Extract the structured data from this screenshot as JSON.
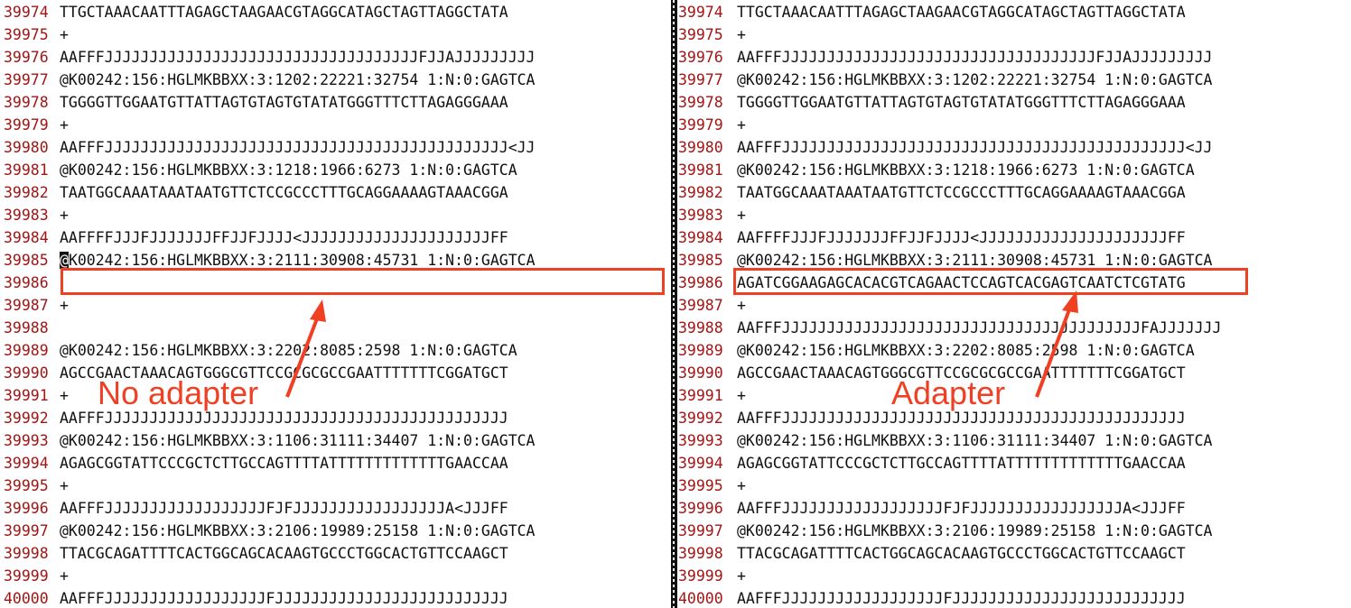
{
  "left_pane": {
    "lines": [
      {
        "n": "39974",
        "text": "TTGCTAAACAATTTAGAGCTAAGAACGTAGGCATAGCTAGTTAGGCTATA"
      },
      {
        "n": "39975",
        "text": "+"
      },
      {
        "n": "39976",
        "text": "AAFFFJJJJJJJJJJJJJJJJJJJJJJJJJJJJJJJJJJJFJJAJJJJJJJJJ"
      },
      {
        "n": "39977",
        "text": "@K00242:156:HGLMKBBXX:3:1202:22221:32754 1:N:0:GAGTCA"
      },
      {
        "n": "39978",
        "text": "TGGGGTTGGAATGTTATTAGTGTAGTGTATATGGGTTTCTTAGAGGGAAA"
      },
      {
        "n": "39979",
        "text": "+"
      },
      {
        "n": "39980",
        "text": "AAFFFJJJJJJJJJJJJJJJJJJJJJJJJJJJJJJJJJJJJJJJJJJJJJ<JJ"
      },
      {
        "n": "39981",
        "text": "@K00242:156:HGLMKBBXX:3:1218:1966:6273 1:N:0:GAGTCA"
      },
      {
        "n": "39982",
        "text": "TAATGGCAAATAAATAATGTTCTCCGCCCTTTGCAGGAAAAGTAAACGGA"
      },
      {
        "n": "39983",
        "text": "+"
      },
      {
        "n": "39984",
        "text": "AAFFFFJJJFJJJJJJJFFJJFJJJJ<JJJJJJJJJJJJJJJJJJJJJFF"
      },
      {
        "n": "39985",
        "text": "K00242:156:HGLMKBBXX:3:2111:30908:45731 1:N:0:GAGTCA",
        "cursor_char": "@"
      },
      {
        "n": "39986",
        "text": ""
      },
      {
        "n": "39987",
        "text": "+"
      },
      {
        "n": "39988",
        "text": ""
      },
      {
        "n": "39989",
        "text": "@K00242:156:HGLMKBBXX:3:2202:8085:2598 1:N:0:GAGTCA"
      },
      {
        "n": "39990",
        "text": "AGCCGAACTAAACAGTGGGCGTTCCGCGCGCCGAATTTTTTTCGGATGCT"
      },
      {
        "n": "39991",
        "text": "+"
      },
      {
        "n": "39992",
        "text": "AAFFFJJJJJJJJJJJJJJJJJJJJJJJJJJJJJJJJJJJJJJJJJJJJJ"
      },
      {
        "n": "39993",
        "text": "@K00242:156:HGLMKBBXX:3:1106:31111:34407 1:N:0:GAGTCA"
      },
      {
        "n": "39994",
        "text": "AGAGCGGTATTCCCGCTCTTGCCAGTTTTATTTTTTTTTTTTTGAACCAA"
      },
      {
        "n": "39995",
        "text": "+"
      },
      {
        "n": "39996",
        "text": "AAFFFJJJJJJJJJJJJJJJJJJFJFJJJJJJJJJJJJJJJJJA<JJJFF"
      },
      {
        "n": "39997",
        "text": "@K00242:156:HGLMKBBXX:3:2106:19989:25158 1:N:0:GAGTCA"
      },
      {
        "n": "39998",
        "text": "TTACGCAGATTTTCACTGGCAGCACAAGTGCCCTGGCACTGTTCCAAGCT"
      },
      {
        "n": "39999",
        "text": "+"
      },
      {
        "n": "40000",
        "text": "AAFFFJJJJJJJJJJJJJJJJJJFJJJJJJJJJJJJJJJJJJJJJJJJJJ"
      }
    ],
    "annotation": "No adapter"
  },
  "right_pane": {
    "lines": [
      {
        "n": "39974",
        "text": "TTGCTAAACAATTTAGAGCTAAGAACGTAGGCATAGCTAGTTAGGCTATA"
      },
      {
        "n": "39975",
        "text": "+"
      },
      {
        "n": "39976",
        "text": "AAFFFJJJJJJJJJJJJJJJJJJJJJJJJJJJJJJJJJJJFJJAJJJJJJJJJ"
      },
      {
        "n": "39977",
        "text": "@K00242:156:HGLMKBBXX:3:1202:22221:32754 1:N:0:GAGTCA"
      },
      {
        "n": "39978",
        "text": "TGGGGTTGGAATGTTATTAGTGTAGTGTATATGGGTTTCTTAGAGGGAAA"
      },
      {
        "n": "39979",
        "text": "+"
      },
      {
        "n": "39980",
        "text": "AAFFFJJJJJJJJJJJJJJJJJJJJJJJJJJJJJJJJJJJJJJJJJJJJJ<JJ"
      },
      {
        "n": "39981",
        "text": "@K00242:156:HGLMKBBXX:3:1218:1966:6273 1:N:0:GAGTCA"
      },
      {
        "n": "39982",
        "text": "TAATGGCAAATAAATAATGTTCTCCGCCCTTTGCAGGAAAAGTAAACGGA"
      },
      {
        "n": "39983",
        "text": "+"
      },
      {
        "n": "39984",
        "text": "AAFFFFJJJFJJJJJJJFFJJFJJJJ<JJJJJJJJJJJJJJJJJJJJJFF"
      },
      {
        "n": "39985",
        "text": "@K00242:156:HGLMKBBXX:3:2111:30908:45731 1:N:0:GAGTCA"
      },
      {
        "n": "39986",
        "text": "AGATCGGAAGAGCACACGTCAGAACTCCAGTCACGAGTCAATCTCGTATG"
      },
      {
        "n": "39987",
        "text": "+"
      },
      {
        "n": "39988",
        "text": "AAFFFJJJJJJJJJJJJJJJJJJJJJJJJJJJJJJJJJJJJJJJJFAJJJJJJJ"
      },
      {
        "n": "39989",
        "text": "@K00242:156:HGLMKBBXX:3:2202:8085:2598 1:N:0:GAGTCA"
      },
      {
        "n": "39990",
        "text": "AGCCGAACTAAACAGTGGGCGTTCCGCGCGCCGAATTTTTTTCGGATGCT"
      },
      {
        "n": "39991",
        "text": "+"
      },
      {
        "n": "39992",
        "text": "AAFFFJJJJJJJJJJJJJJJJJJJJJJJJJJJJJJJJJJJJJJJJJJJJJ"
      },
      {
        "n": "39993",
        "text": "@K00242:156:HGLMKBBXX:3:1106:31111:34407 1:N:0:GAGTCA"
      },
      {
        "n": "39994",
        "text": "AGAGCGGTATTCCCGCTCTTGCCAGTTTTATTTTTTTTTTTTTGAACCAA"
      },
      {
        "n": "39995",
        "text": "+"
      },
      {
        "n": "39996",
        "text": "AAFFFJJJJJJJJJJJJJJJJJJFJFJJJJJJJJJJJJJJJJJA<JJJFF"
      },
      {
        "n": "39997",
        "text": "@K00242:156:HGLMKBBXX:3:2106:19989:25158 1:N:0:GAGTCA"
      },
      {
        "n": "39998",
        "text": "TTACGCAGATTTTCACTGGCAGCACAAGTGCCCTGGCACTGTTCCAAGCT"
      },
      {
        "n": "39999",
        "text": "+"
      },
      {
        "n": "40000",
        "text": "AAFFFJJJJJJJJJJJJJJJJJJFJJJJJJJJJJJJJJJJJJJJJJJJJJ"
      }
    ],
    "annotation": "Adapter"
  },
  "colors": {
    "line_number": "#a31515",
    "text": "#111111",
    "annotation": "#f04024"
  }
}
